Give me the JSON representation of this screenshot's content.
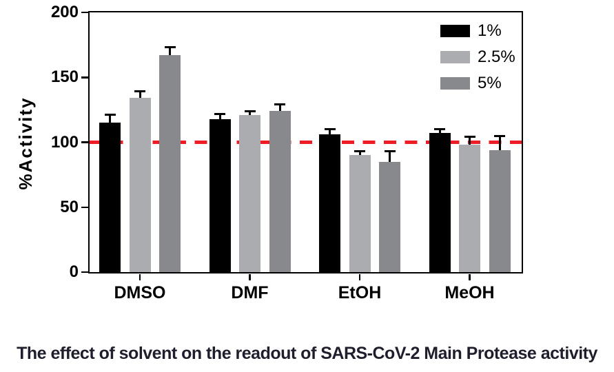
{
  "chart_data": {
    "type": "bar",
    "title": "",
    "caption": "The effect of solvent on the readout of SARS-CoV-2 Main Protease activity",
    "ylabel": "%Activity",
    "xlabel": "",
    "categories": [
      "DMSO",
      "DMF",
      "EtOH",
      "MeOH"
    ],
    "series": [
      {
        "name": "1%",
        "color": "#000000",
        "values": [
          115,
          118,
          106,
          107
        ],
        "errors": [
          6,
          4,
          4,
          3
        ]
      },
      {
        "name": "2.5%",
        "color": "#aaacaf",
        "values": [
          134,
          121,
          90,
          98
        ],
        "errors": [
          5,
          3,
          3,
          6
        ]
      },
      {
        "name": "5%",
        "color": "#87898c",
        "values": [
          167,
          124,
          85,
          94
        ],
        "errors": [
          6,
          5,
          8,
          11
        ]
      }
    ],
    "ylim": [
      0,
      200
    ],
    "yticks": [
      0,
      50,
      100,
      150,
      200
    ],
    "reference_line": {
      "y": 100,
      "color": "#ee1c25",
      "style": "dashed"
    },
    "legend_position": "top-right-inside",
    "grid": false,
    "frame": true,
    "axis_color": "#000000",
    "error_bar_color": "#000000"
  }
}
